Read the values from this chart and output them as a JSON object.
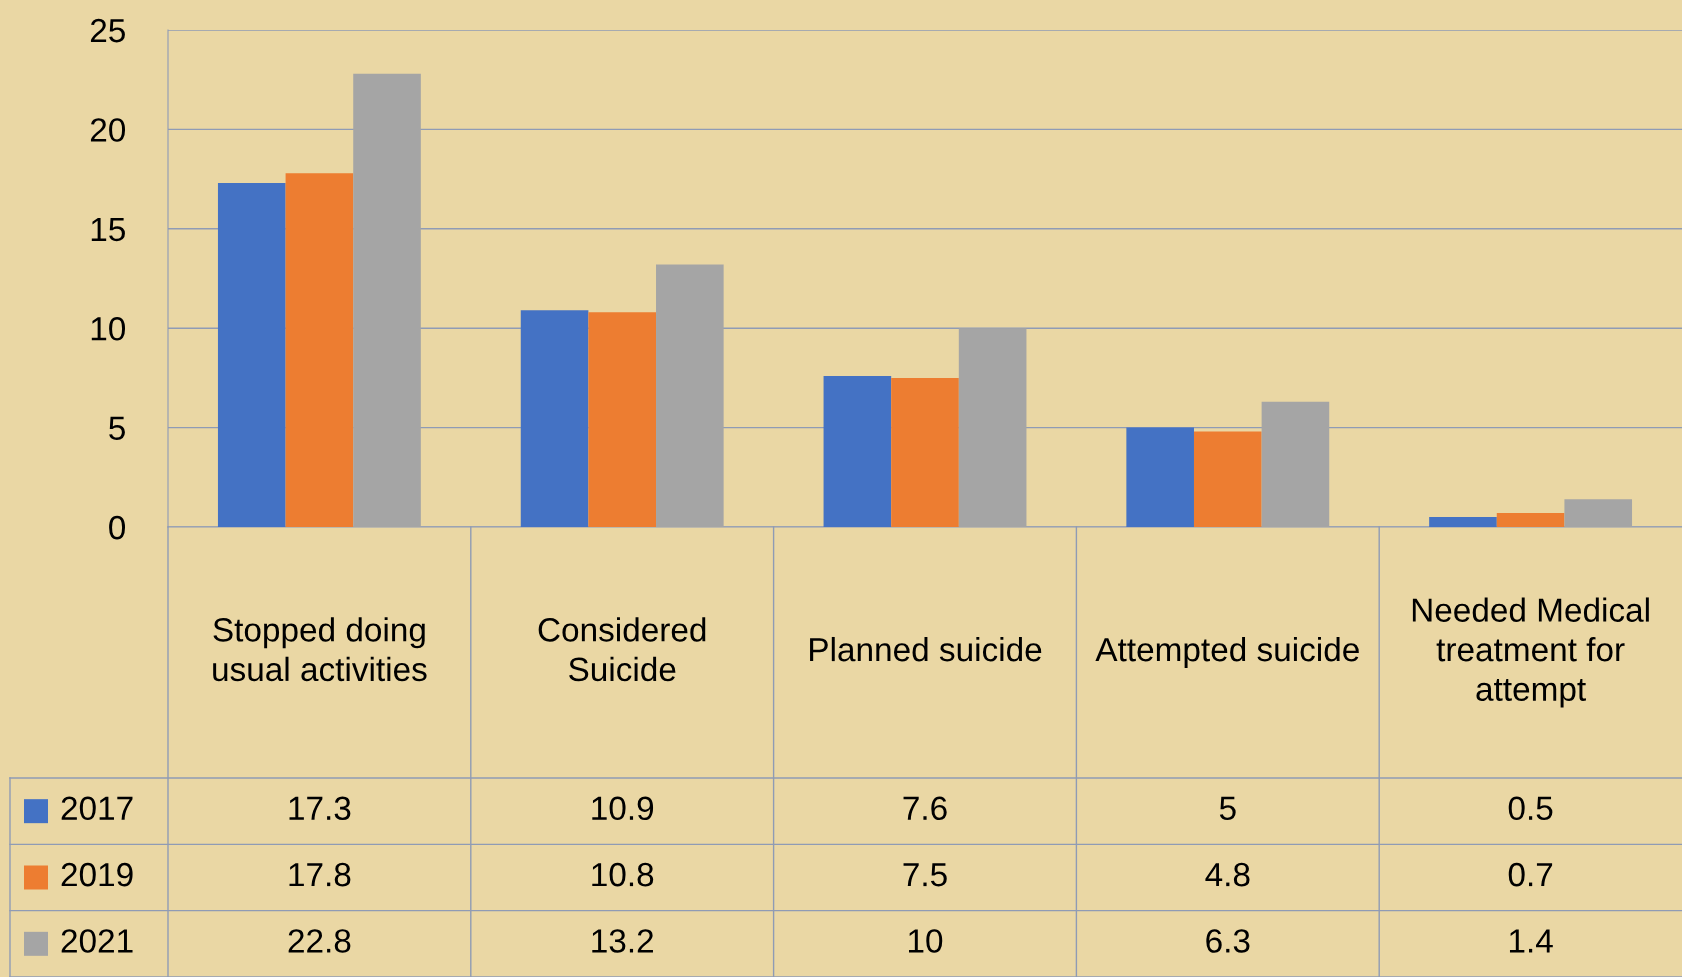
{
  "chart_data": {
    "type": "bar",
    "categories": [
      "Stopped doing usual activities",
      "Considered Suicide",
      "Planned suicide",
      "Attempted suicide",
      "Needed Medical treatment for attempt"
    ],
    "series": [
      {
        "name": "2017",
        "color": "#4472c4",
        "values": [
          17.3,
          10.9,
          7.6,
          5,
          0.5
        ]
      },
      {
        "name": "2019",
        "color": "#ed7d31",
        "values": [
          17.8,
          10.8,
          7.5,
          4.8,
          0.7
        ]
      },
      {
        "name": "2021",
        "color": "#a5a5a5",
        "values": [
          22.8,
          13.2,
          10,
          6.3,
          1.4
        ]
      }
    ],
    "ylim": [
      0,
      25
    ],
    "yticks": [
      0,
      5,
      10,
      15,
      20,
      25
    ],
    "grid": "y",
    "data_labels": true,
    "legend": "bottom left"
  }
}
